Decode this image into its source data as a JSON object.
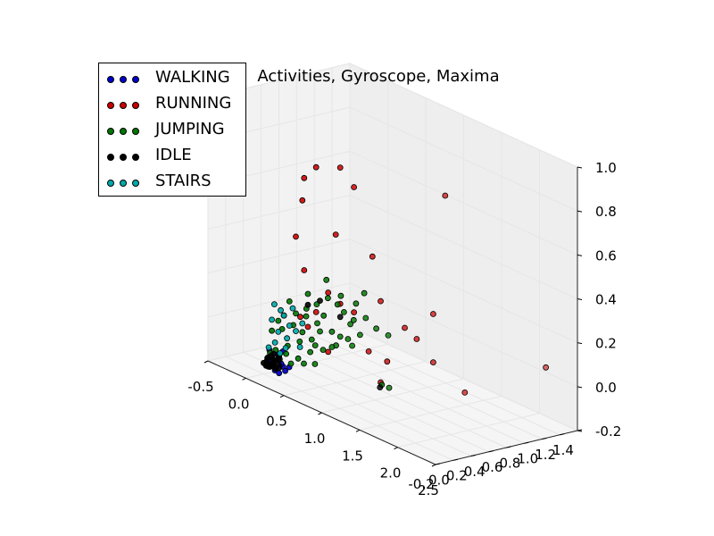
{
  "chart_data": {
    "type": "scatter",
    "projection": "3d",
    "title": "Activities, Gyroscope, Maxima",
    "xlim": [
      -0.5,
      2.5
    ],
    "ylim": [
      -0.2,
      1.4
    ],
    "zlim": [
      -0.2,
      1.0
    ],
    "x_ticks": [
      "-0.5",
      "0.0",
      "0.5",
      "1.0",
      "1.5",
      "2.0",
      "2.5"
    ],
    "y_ticks": [
      "-0.2",
      "0.0",
      "0.2",
      "0.4",
      "0.6",
      "0.8",
      "1.0",
      "1.2",
      "1.4"
    ],
    "z_ticks": [
      "-0.2",
      "0.0",
      "0.2",
      "0.4",
      "0.6",
      "0.8",
      "1.0"
    ],
    "grid": true,
    "legend_position": "top-left",
    "series": [
      {
        "name": "WALKING",
        "color": "#0000cc",
        "points": [
          [
            0.05,
            0.0,
            -0.12
          ],
          [
            0.1,
            0.02,
            -0.15
          ],
          [
            0.15,
            0.0,
            -0.16
          ],
          [
            0.2,
            0.05,
            -0.14
          ],
          [
            0.08,
            0.03,
            -0.13
          ],
          [
            0.18,
            0.02,
            -0.17
          ],
          [
            0.12,
            0.06,
            -0.1
          ],
          [
            0.25,
            0.03,
            -0.15
          ],
          [
            0.03,
            0.04,
            -0.09
          ],
          [
            0.22,
            0.01,
            -0.12
          ],
          [
            0.28,
            0.05,
            -0.13
          ],
          [
            0.16,
            0.08,
            -0.08
          ]
        ]
      },
      {
        "name": "RUNNING",
        "color": "#cc0000",
        "points": [
          [
            0.3,
            0.2,
            0.72
          ],
          [
            0.4,
            0.25,
            0.78
          ],
          [
            0.6,
            0.35,
            0.8
          ],
          [
            0.3,
            0.18,
            0.62
          ],
          [
            0.7,
            0.42,
            0.72
          ],
          [
            0.25,
            0.15,
            0.45
          ],
          [
            0.6,
            0.3,
            0.5
          ],
          [
            0.3,
            0.2,
            0.3
          ],
          [
            0.85,
            0.5,
            0.42
          ],
          [
            0.5,
            0.3,
            0.22
          ],
          [
            0.6,
            0.35,
            0.18
          ],
          [
            0.9,
            0.55,
            0.22
          ],
          [
            1.3,
            0.8,
            0.2
          ],
          [
            1.1,
            0.65,
            0.12
          ],
          [
            0.4,
            0.25,
            0.12
          ],
          [
            0.25,
            0.2,
            0.08
          ],
          [
            0.8,
            0.5,
            -0.02
          ],
          [
            0.95,
            0.58,
            -0.05
          ],
          [
            1.3,
            0.8,
            -0.02
          ],
          [
            1.2,
            0.7,
            0.08
          ],
          [
            2.2,
            1.3,
            0.05
          ],
          [
            1.6,
            0.9,
            -0.12
          ],
          [
            1.4,
            0.85,
            0.75
          ],
          [
            0.9,
            0.55,
            -0.15
          ],
          [
            0.7,
            0.42,
            0.15
          ],
          [
            0.5,
            0.3,
            -0.05
          ],
          [
            0.35,
            0.2,
            0.05
          ]
        ]
      },
      {
        "name": "JUMPING",
        "color": "#007700",
        "points": [
          [
            0.15,
            0.08,
            0.02
          ],
          [
            0.2,
            0.1,
            -0.05
          ],
          [
            0.25,
            0.12,
            0.05
          ],
          [
            0.3,
            0.15,
            -0.02
          ],
          [
            0.35,
            0.18,
            0.1
          ],
          [
            0.1,
            0.05,
            -0.08
          ],
          [
            0.4,
            0.2,
            0.0
          ],
          [
            0.45,
            0.22,
            0.08
          ],
          [
            0.5,
            0.25,
            0.12
          ],
          [
            0.55,
            0.3,
            0.05
          ],
          [
            0.6,
            0.32,
            0.18
          ],
          [
            0.65,
            0.35,
            0.15
          ],
          [
            0.7,
            0.38,
            0.1
          ],
          [
            0.75,
            0.4,
            0.2
          ],
          [
            0.8,
            0.45,
            0.25
          ],
          [
            0.5,
            0.28,
            0.28
          ],
          [
            0.35,
            0.2,
            0.2
          ],
          [
            0.2,
            0.12,
            0.15
          ],
          [
            0.05,
            0.03,
            -0.1
          ],
          [
            0.12,
            0.06,
            -0.12
          ],
          [
            0.18,
            0.1,
            -0.09
          ],
          [
            0.28,
            0.15,
            -0.1
          ],
          [
            0.38,
            0.2,
            -0.06
          ],
          [
            0.48,
            0.26,
            -0.04
          ],
          [
            0.58,
            0.32,
            -0.01
          ],
          [
            0.68,
            0.37,
            0.03
          ],
          [
            0.78,
            0.42,
            0.06
          ],
          [
            0.15,
            0.1,
            0.08
          ],
          [
            0.25,
            0.15,
            0.1
          ],
          [
            0.33,
            0.2,
            0.13
          ],
          [
            0.42,
            0.24,
            0.16
          ],
          [
            0.52,
            0.28,
            0.2
          ],
          [
            0.62,
            0.34,
            0.22
          ],
          [
            0.72,
            0.4,
            0.12
          ],
          [
            0.82,
            0.45,
            0.14
          ],
          [
            0.9,
            0.5,
            0.1
          ],
          [
            1.0,
            0.55,
            0.08
          ],
          [
            0.22,
            0.12,
            -0.13
          ],
          [
            0.32,
            0.18,
            -0.12
          ],
          [
            0.42,
            0.22,
            -0.11
          ],
          [
            0.05,
            0.05,
            0.0
          ],
          [
            0.1,
            0.08,
            0.05
          ],
          [
            0.3,
            0.18,
            0.02
          ],
          [
            0.45,
            0.25,
            0.04
          ],
          [
            0.55,
            0.3,
            -0.02
          ],
          [
            0.95,
            0.52,
            -0.15
          ],
          [
            1.0,
            0.56,
            -0.16
          ],
          [
            0.6,
            0.35,
            0.03
          ],
          [
            0.7,
            0.4,
            0.0
          ],
          [
            0.4,
            0.24,
            -0.03
          ]
        ]
      },
      {
        "name": "IDLE",
        "color": "#000000",
        "points": [
          [
            0.0,
            0.0,
            -0.15
          ],
          [
            0.02,
            0.01,
            -0.16
          ],
          [
            0.04,
            0.0,
            -0.15
          ],
          [
            0.06,
            0.02,
            -0.16
          ],
          [
            0.01,
            0.03,
            -0.14
          ],
          [
            0.03,
            0.02,
            -0.15
          ],
          [
            0.05,
            0.01,
            -0.16
          ],
          [
            0.07,
            0.03,
            -0.15
          ],
          [
            0.08,
            0.04,
            -0.14
          ],
          [
            0.0,
            0.05,
            -0.13
          ],
          [
            0.1,
            0.02,
            -0.15
          ],
          [
            0.12,
            0.03,
            -0.16
          ],
          [
            0.14,
            0.05,
            -0.14
          ],
          [
            0.16,
            0.04,
            -0.15
          ],
          [
            0.09,
            0.06,
            -0.13
          ],
          [
            0.02,
            0.07,
            -0.12
          ],
          [
            0.11,
            0.08,
            -0.11
          ],
          [
            0.13,
            0.07,
            -0.12
          ],
          [
            0.06,
            0.06,
            -0.13
          ],
          [
            0.04,
            0.08,
            -0.11
          ],
          [
            0.35,
            0.2,
            0.15
          ],
          [
            0.45,
            0.25,
            0.18
          ],
          [
            0.95,
            0.5,
            -0.16
          ],
          [
            0.6,
            0.35,
            0.12
          ]
        ]
      },
      {
        "name": "STAIRS",
        "color": "#00aaaa",
        "points": [
          [
            0.05,
            0.05,
            0.05
          ],
          [
            0.1,
            0.08,
            0.0
          ],
          [
            0.15,
            0.1,
            0.08
          ],
          [
            0.2,
            0.12,
            0.04
          ],
          [
            0.08,
            0.06,
            -0.05
          ],
          [
            0.12,
            0.09,
            0.1
          ],
          [
            0.18,
            0.11,
            -0.02
          ],
          [
            0.02,
            0.04,
            -0.08
          ],
          [
            0.25,
            0.15,
            0.02
          ],
          [
            0.3,
            0.18,
            0.06
          ],
          [
            0.22,
            0.14,
            0.12
          ],
          [
            0.06,
            0.07,
            0.12
          ],
          [
            0.15,
            0.12,
            -0.07
          ],
          [
            0.1,
            0.1,
            -0.1
          ],
          [
            0.28,
            0.17,
            -0.05
          ]
        ]
      }
    ]
  }
}
